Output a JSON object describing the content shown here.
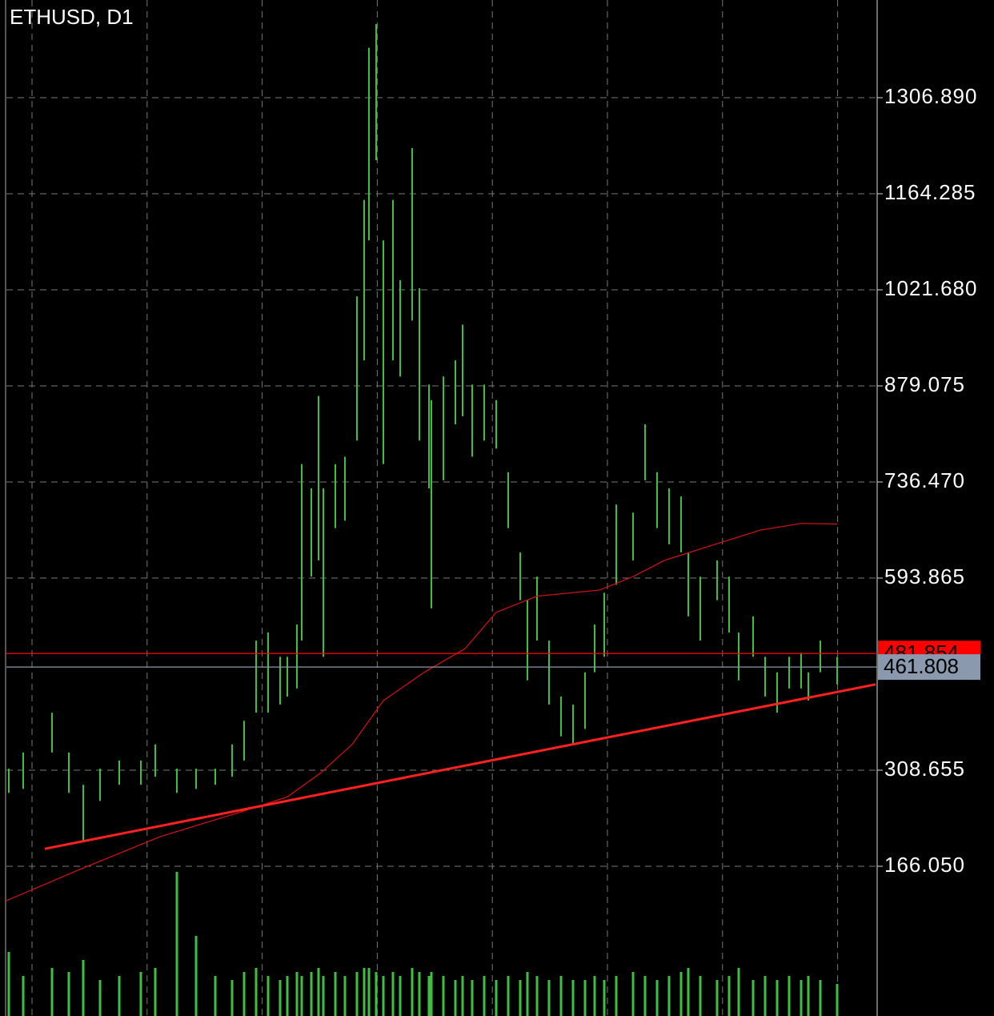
{
  "chart_data": {
    "type": "range-bar",
    "title": "ETHUSD, D1",
    "x": [
      1,
      7,
      19,
      26,
      32,
      39,
      47,
      56,
      62,
      71,
      79,
      87,
      94,
      99,
      104,
      109,
      114,
      117,
      121,
      123,
      127,
      130,
      132,
      137,
      141,
      146,
      149,
      151,
      154,
      157,
      161,
      164,
      169,
      172,
      176,
      177,
      182,
      187,
      190,
      194,
      199,
      204,
      209,
      214,
      217,
      221,
      226,
      231,
      236,
      241,
      245,
      249,
      254,
      261,
      266,
      271,
      276,
      281,
      284,
      289,
      296,
      301,
      305,
      311,
      316,
      321,
      326,
      331,
      334,
      339,
      346
    ],
    "high": [
      311,
      335,
      394,
      335,
      287,
      311,
      323,
      323,
      347,
      311,
      311,
      311,
      347,
      382,
      501,
      513,
      477,
      477,
      525,
      763,
      727,
      864,
      727,
      763,
      774,
      1012,
      1155,
      1381,
      1416,
      1095,
      1155,
      1036,
      1232,
      1024,
      881,
      858,
      893,
      917,
      970,
      881,
      881,
      858,
      751,
      632,
      561,
      596,
      501,
      418,
      406,
      454,
      525,
      572,
      703,
      691,
      822,
      751,
      727,
      715,
      632,
      596,
      620,
      596,
      513,
      537,
      477,
      454,
      477,
      483,
      454,
      501,
      477
    ],
    "low": [
      275,
      281,
      335,
      275,
      204,
      263,
      287,
      287,
      299,
      275,
      281,
      287,
      299,
      323,
      394,
      394,
      406,
      418,
      430,
      501,
      596,
      620,
      477,
      668,
      679,
      798,
      917,
      1095,
      1214,
      763,
      917,
      893,
      976,
      798,
      727,
      549,
      739,
      822,
      834,
      774,
      798,
      786,
      668,
      561,
      442,
      501,
      406,
      359,
      347,
      370,
      454,
      477,
      584,
      620,
      739,
      668,
      644,
      632,
      537,
      501,
      561,
      513,
      442,
      477,
      418,
      394,
      430,
      430,
      412,
      454,
      436
    ],
    "volume": [
      80,
      50,
      60,
      55,
      70,
      45,
      50,
      55,
      60,
      180,
      100,
      50,
      45,
      55,
      60,
      50,
      45,
      50,
      55,
      50,
      55,
      60,
      50,
      55,
      50,
      55,
      60,
      60,
      55,
      50,
      55,
      50,
      60,
      55,
      50,
      55,
      50,
      45,
      50,
      45,
      50,
      45,
      50,
      45,
      55,
      50,
      45,
      50,
      45,
      45,
      50,
      45,
      50,
      55,
      50,
      45,
      50,
      55,
      60,
      50,
      45,
      50,
      60,
      45,
      50,
      45,
      50,
      45,
      50,
      45,
      40
    ],
    "volume_ylim": [
      0,
      200
    ],
    "color": "#3fbf3f",
    "moving_average": {
      "x": [
        0,
        31,
        64,
        97,
        117,
        131,
        144,
        157,
        174,
        191,
        204,
        221,
        247,
        261,
        274,
        297,
        314,
        331,
        346
      ],
      "values": [
        115,
        162,
        210,
        246,
        269,
        305,
        347,
        412,
        454,
        489,
        543,
        567,
        576,
        596,
        620,
        646,
        665,
        675,
        674
      ],
      "color": "#cc1111"
    },
    "trend_line": {
      "x": [
        16,
        362
      ],
      "values": [
        192,
        436
      ],
      "color": "#ff2020"
    },
    "price_lines": [
      {
        "value": 481.854,
        "color": "#ff0000"
      },
      {
        "value": 461.808,
        "color": "#8a99ad"
      }
    ],
    "xlim": [
      0,
      362
    ],
    "ylim": [
      -56.18,
      1451.87
    ],
    "yticks": [
      {
        "value": 166.05,
        "label": "166.050"
      },
      308.655,
      593.865,
      {
        "value": 736.47,
        "label": "736.470"
      },
      879.075,
      {
        "value": 1021.68,
        "label": "1021.680"
      },
      1164.285,
      {
        "value": 1306.89,
        "label": "1306.890"
      }
    ],
    "grid": true
  }
}
